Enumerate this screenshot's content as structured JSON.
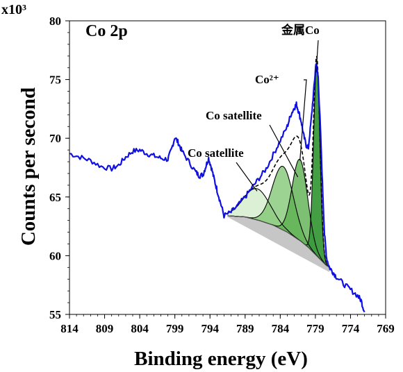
{
  "chart_data": {
    "type": "line",
    "panel_label": "Co 2p",
    "multiplier": "x10³",
    "xlabel": "Binding energy (eV)",
    "ylabel": "Counts per second",
    "xlim": [
      814,
      769
    ],
    "ylim": [
      55,
      80
    ],
    "x_reversed": true,
    "x_ticks": [
      814,
      809,
      804,
      799,
      794,
      789,
      784,
      779,
      774,
      769
    ],
    "y_ticks": [
      55,
      60,
      65,
      70,
      75,
      80
    ],
    "grid": false,
    "colors": {
      "spectrum": "#1010e0",
      "fit": "#000000",
      "fill_dark": "#3a9a3a",
      "fill_light": "#bfe3b5",
      "background_fill": "#b8b8b8"
    },
    "spectrum": {
      "x": [
        814,
        812.5,
        811,
        809.5,
        808,
        807,
        806,
        805,
        804,
        803,
        802,
        801,
        800,
        799.5,
        799,
        798.5,
        798,
        797,
        796,
        795.5,
        795,
        794.6,
        794.2,
        793.8,
        793.4,
        793,
        792.5,
        792,
        791,
        790,
        789,
        788,
        787,
        786,
        785,
        784,
        783,
        782.5,
        782,
        781.7,
        781.4,
        781,
        780.7,
        780.3,
        780,
        779.6,
        779.2,
        778.9,
        778.6,
        778.3,
        778,
        777.7,
        777.4,
        777.0,
        776.5,
        776,
        775,
        774,
        773,
        772.5,
        772
      ],
      "y": [
        68.7,
        68.4,
        68.1,
        67.6,
        67.4,
        67.7,
        68.4,
        68.9,
        69.0,
        68.7,
        68.5,
        68.3,
        68.2,
        69.0,
        70.1,
        69.6,
        68.9,
        68.0,
        67.1,
        66.8,
        66.9,
        67.6,
        68.3,
        67.5,
        66.5,
        65.6,
        64.5,
        63.4,
        63.7,
        64.3,
        65.0,
        65.8,
        66.6,
        67.4,
        68.6,
        69.8,
        71.0,
        72.0,
        72.6,
        72.9,
        72.3,
        71.4,
        70.3,
        69.4,
        69.2,
        71.5,
        74.3,
        76.5,
        75.2,
        71.0,
        66.2,
        61.8,
        59.8,
        59.0,
        58.6,
        58.2,
        57.6,
        57.1,
        56.6,
        56.2,
        55.2
      ]
    },
    "background": {
      "x": [
        791.5,
        789,
        787,
        785,
        783,
        781,
        780,
        779,
        778.5,
        778,
        777.5,
        777
      ],
      "y": [
        63.4,
        63.3,
        63.0,
        62.6,
        62.0,
        61.2,
        60.7,
        60.1,
        59.8,
        59.5,
        59.2,
        59.0
      ]
    },
    "components": [
      {
        "name": "Co satellite",
        "center": 787.3,
        "height": 65.7,
        "sigma": 1.9
      },
      {
        "name": "Co satellite",
        "center": 783.6,
        "height": 67.6,
        "sigma": 1.5
      },
      {
        "name": "Co²⁺",
        "center": 781.2,
        "height": 68.2,
        "sigma": 1.1
      },
      {
        "name": "金属Co",
        "center": 778.8,
        "height": 76.3,
        "sigma": 0.45
      }
    ],
    "annotations": [
      {
        "text": "金属Co",
        "target_x": 778.9,
        "target_y": 75.6
      },
      {
        "text": "Co²⁺",
        "target_x": 781.2,
        "target_y": 68.1
      },
      {
        "text": "Co satellite",
        "target_x": 781.5,
        "target_y": 66.7
      },
      {
        "text": "Co satellite",
        "target_x": 787.3,
        "target_y": 65.5
      }
    ]
  }
}
